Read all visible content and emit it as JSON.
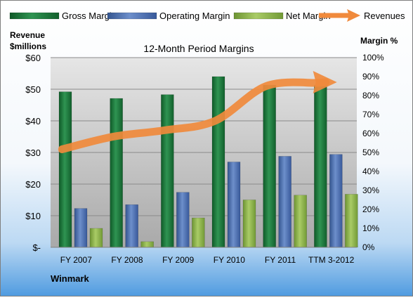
{
  "chart_data": {
    "type": "bar",
    "title": "12-Month Period Margins",
    "y_left_label_line1": "Revenue",
    "y_left_label_line2": "$millions",
    "y_right_label": "Margin %",
    "company": "Winmark",
    "categories": [
      "FY 2007",
      "FY 2008",
      "FY 2009",
      "FY 2010",
      "FY 2011",
      "TTM 3-2012"
    ],
    "left_ticks": [
      "$-",
      "$10",
      "$20",
      "$30",
      "$40",
      "$50",
      "$60"
    ],
    "right_ticks": [
      "0%",
      "10%",
      "20%",
      "30%",
      "40%",
      "50%",
      "60%",
      "70%",
      "80%",
      "90%",
      "100%"
    ],
    "ylim_left": [
      0,
      60
    ],
    "ylim_right": [
      0,
      100
    ],
    "legend_position": "top",
    "series": [
      {
        "name": "Gross Margin",
        "color": "#1e7a3c",
        "values": [
          82,
          78.5,
          80.5,
          90,
          85.5,
          85.5
        ]
      },
      {
        "name": "Operating Margin",
        "color": "#4a6fb5",
        "values": [
          20.5,
          22.5,
          29,
          45,
          48,
          49
        ]
      },
      {
        "name": "Net Margin",
        "color": "#8fb74a",
        "values": [
          10,
          3,
          15.5,
          25,
          27.5,
          28
        ]
      }
    ],
    "revenue": {
      "name": "Revenues",
      "color": "#f08a3c",
      "values": [
        31,
        35,
        37,
        40,
        51,
        52
      ]
    }
  }
}
